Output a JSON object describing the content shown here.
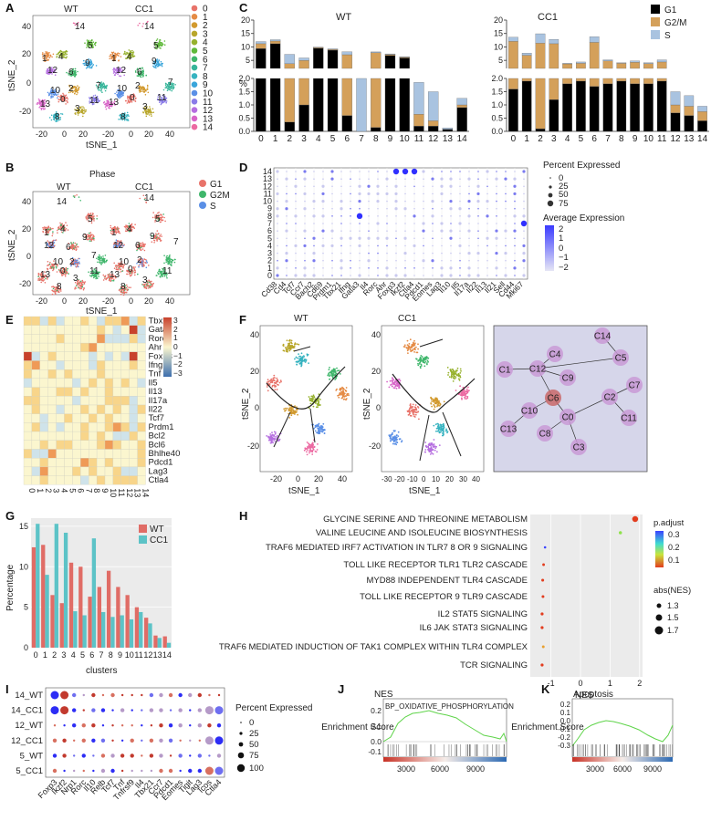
{
  "panels": [
    "A",
    "B",
    "C",
    "D",
    "E",
    "F",
    "G",
    "H",
    "I",
    "J",
    "K"
  ],
  "colors": {
    "g1": "#000000",
    "g2m": "#d4a05a",
    "s": "#a9c3e0",
    "wt": "#e06c66",
    "cc1": "#5cc3c7",
    "cluster_palette": [
      "#e8736a",
      "#e58b45",
      "#d29a2f",
      "#b8a62a",
      "#96b12d",
      "#5fb93a",
      "#3fb66b",
      "#36b59a",
      "#37b3c0",
      "#3aa5da",
      "#5a8fe6",
      "#8a7be8",
      "#b56ee0",
      "#d865c8",
      "#ec6aa2"
    ]
  },
  "panelA": {
    "titles": [
      "WT",
      "CC1"
    ],
    "xlabel": "tSNE_1",
    "ylabel": "tSNE_2",
    "xticks": [
      "-20",
      "0",
      "20",
      "40"
    ],
    "yticks": [
      "40",
      "20",
      "0",
      "-20"
    ],
    "legend": [
      "0",
      "1",
      "2",
      "3",
      "4",
      "5",
      "6",
      "7",
      "8",
      "9",
      "10",
      "11",
      "12",
      "13",
      "14"
    ],
    "cluster_labels": [
      "14",
      "5",
      "1",
      "4",
      "12",
      "9",
      "6",
      "10",
      "2",
      "13",
      "0",
      "7",
      "11",
      "8",
      "3"
    ]
  },
  "panelB": {
    "title": "Phase",
    "titles": [
      "WT",
      "CC1"
    ],
    "xlabel": "tSNE_1",
    "ylabel": "tSNE_2",
    "xticks": [
      "-20",
      "0",
      "20",
      "40"
    ],
    "yticks": [
      "40",
      "20",
      "0",
      "-20"
    ],
    "legend": [
      "G1",
      "G2M",
      "S"
    ],
    "legend_colors": [
      "#e8736a",
      "#3fb66b",
      "#5a8fe6"
    ]
  },
  "chart_data": [
    {
      "type": "bar",
      "panel": "C-WT",
      "title": "WT",
      "ylabel": "%",
      "categories": [
        "0",
        "1",
        "2",
        "3",
        "4",
        "5",
        "6",
        "7",
        "8",
        "9",
        "10",
        "11",
        "12",
        "13",
        "14"
      ],
      "upper_yticks": [
        "20",
        "15",
        "10",
        "5"
      ],
      "lower_yticks": [
        "2.0",
        "1.5",
        "1.0",
        "0.5",
        "0.0"
      ],
      "series": [
        {
          "name": "G1",
          "values": [
            9.4,
            11.2,
            0.35,
            1.0,
            9.5,
            8.8,
            0.6,
            0,
            0.15,
            6.8,
            5.9,
            0.2,
            0.2,
            0.08,
            0.9
          ]
        },
        {
          "name": "G2/M",
          "values": [
            1.8,
            1.0,
            3.4,
            4.0,
            0.3,
            0.3,
            6.5,
            0,
            7.7,
            0.4,
            0.3,
            0.45,
            0.2,
            0,
            0.1
          ]
        },
        {
          "name": "S",
          "values": [
            0.8,
            0.5,
            3.5,
            0.9,
            0.1,
            0.2,
            1.1,
            2.0,
            0.3,
            0.2,
            0.1,
            1.2,
            1.1,
            0.05,
            0.25
          ]
        }
      ]
    },
    {
      "type": "bar",
      "panel": "C-CC1",
      "title": "CC1",
      "ylabel": "%",
      "categories": [
        "0",
        "1",
        "2",
        "3",
        "4",
        "5",
        "6",
        "7",
        "8",
        "9",
        "10",
        "11",
        "12",
        "13",
        "14"
      ],
      "upper_yticks": [
        "20",
        "15",
        "10",
        "5"
      ],
      "lower_yticks": [
        "2.0",
        "1.5",
        "1.0",
        "0.5",
        "0.0"
      ],
      "series": [
        {
          "name": "G1",
          "values": [
            1.6,
            1.9,
            0.1,
            1.2,
            1.8,
            1.9,
            1.7,
            1.8,
            1.9,
            1.8,
            1.8,
            1.9,
            0.7,
            0.6,
            0.4
          ]
        },
        {
          "name": "G2/M",
          "values": [
            10.5,
            5.0,
            11.3,
            10.0,
            1.9,
            2.0,
            10.0,
            3.0,
            2.0,
            2.5,
            2.0,
            2.5,
            0.3,
            0.35,
            0.35
          ]
        },
        {
          "name": "S",
          "values": [
            1.5,
            0.8,
            3.5,
            1.6,
            0.2,
            0.5,
            2.1,
            0.4,
            0.2,
            0.5,
            0.3,
            0.8,
            0.5,
            0.4,
            0.2
          ]
        }
      ]
    },
    {
      "type": "bar",
      "panel": "G",
      "xlabel": "clusters",
      "ylabel": "Percentage",
      "yticks": [
        "0",
        "5",
        "10",
        "15"
      ],
      "ylim": [
        0,
        16
      ],
      "categories": [
        "0",
        "1",
        "2",
        "3",
        "4",
        "5",
        "6",
        "7",
        "8",
        "9",
        "10",
        "11",
        "12",
        "13",
        "14"
      ],
      "series": [
        {
          "name": "WT",
          "values": [
            12.4,
            12.7,
            6.5,
            5.5,
            10.5,
            10.0,
            6.3,
            7.5,
            9.5,
            7.5,
            6.5,
            5.0,
            3.7,
            1.5,
            1.4
          ]
        },
        {
          "name": "CC1",
          "values": [
            15.3,
            9.0,
            15.3,
            14.2,
            4.5,
            4.0,
            13.5,
            4.4,
            3.8,
            4.0,
            3.5,
            4.4,
            3.0,
            1.2,
            0.6
          ]
        }
      ]
    },
    {
      "type": "scatter",
      "panel": "H",
      "xlabel": "NES",
      "xticks": [
        "-1",
        "0",
        "1",
        "2"
      ],
      "xlim": [
        -1.7,
        2.1
      ],
      "categories": [
        "GLYCINE SERINE AND THREONINE METABOLISM",
        "VALINE LEUCINE AND ISOLEUCINE BIOSYNTHESIS",
        "TRAF6 MEDIATED IRF7 ACTIVATION IN TLR7 8 OR 9 SIGNALING",
        "TOLL LIKE RECEPTOR TLR1 TLR2 CASCADE",
        "MYD88 INDEPENDENT TLR4 CASCADE",
        "TOLL LIKE RECEPTOR 9 TLR9 CASCADE",
        "IL2 STAT5 SIGNALING",
        "IL6 JAK STAT3 SIGNALING",
        "TRAF6 MEDIATED INDUCTION OF  TAK1 COMPLEX WITHIN TLR4 COMPLEX",
        "TCR SIGNALING"
      ],
      "nes": [
        1.85,
        1.35,
        -1.2,
        -1.25,
        -1.28,
        -1.27,
        -1.3,
        -1.3,
        -1.26,
        -1.3
      ],
      "p_adjust": [
        0.03,
        0.22,
        0.35,
        0.05,
        0.06,
        0.05,
        0.04,
        0.05,
        0.1,
        0.05
      ],
      "abs_nes": [
        1.85,
        1.35,
        1.2,
        1.25,
        1.28,
        1.27,
        1.3,
        1.3,
        1.26,
        1.3
      ]
    }
  ],
  "panelD": {
    "yticks": [
      "14",
      "13",
      "12",
      "11",
      "10",
      "9",
      "8",
      "7",
      "6",
      "5",
      "4",
      "3",
      "2",
      "1",
      "0"
    ],
    "genes": [
      "Cd38",
      "Cd4",
      "Tcf7",
      "Ccr7",
      "Bach2",
      "Cd69",
      "Prdm1",
      "Tbx21",
      "Ifng",
      "Gata3",
      "Il4",
      "Rorc",
      "Ahr",
      "Foxp3",
      "Ikzf2",
      "Ctla4",
      "Pdcd1",
      "Eomes",
      "Lag3",
      "Il10",
      "Il5",
      "Il17a",
      "Il22",
      "Il13",
      "Il21",
      "Sell",
      "Cd44",
      "Mki67"
    ],
    "legend_title1": "Percent Expressed",
    "legend_sizes": [
      "0",
      "25",
      "50",
      "75"
    ],
    "legend_title2": "Average Expression",
    "legend_colors": [
      "2",
      "1",
      "0",
      "−1",
      "−2"
    ]
  },
  "panelE": {
    "genes": [
      "Tbx21",
      "Gata3",
      "Rorc",
      "Ahr",
      "Foxp3",
      "Ifng",
      "Tnf",
      "Il5",
      "Il13",
      "Il17a",
      "Il22",
      "Tcf7",
      "Prdm1",
      "Bcl2",
      "Bcl6",
      "Bhlhe40",
      "Pdcd1",
      "Lag3",
      "Ctla4"
    ],
    "clusters": [
      "0",
      "1",
      "2",
      "3",
      "4",
      "5",
      "6",
      "7",
      "8",
      "9",
      "10",
      "11",
      "12",
      "13",
      "14"
    ],
    "scale": [
      "3",
      "2",
      "1",
      "0",
      "−1",
      "−2",
      "−3"
    ]
  },
  "panelF": {
    "titles": [
      "WT",
      "CC1"
    ],
    "xlabel": "tSNE_1",
    "ylabel": "tSNE_2",
    "xticks_wt": [
      "-20",
      "0",
      "20",
      "40"
    ],
    "xticks_cc1": [
      "-30",
      "-20",
      "-10",
      "0",
      "10",
      "20",
      "30",
      "40"
    ],
    "yticks": [
      "40",
      "20",
      "0",
      "-20"
    ],
    "network_nodes": [
      "C14",
      "C4",
      "C5",
      "C1",
      "C12",
      "C9",
      "C7",
      "C6",
      "C2",
      "C10",
      "C0",
      "C11",
      "C13",
      "C8",
      "C3"
    ]
  },
  "panelG": {
    "legend": [
      "WT",
      "CC1"
    ]
  },
  "panelH": {
    "legend_title1": "p.adjust",
    "legend_ticks1": [
      "0.3",
      "0.2",
      "0.1"
    ],
    "legend_title2": "abs(NES)",
    "legend_ticks2": [
      "1.3",
      "1.5",
      "1.7"
    ]
  },
  "panelI": {
    "rows": [
      "14_WT",
      "14_CC1",
      "12_WT",
      "12_CC1",
      "5_WT",
      "5_CC1"
    ],
    "genes": [
      "Foxp3",
      "Ikzf2",
      "Nrp1",
      "Rorc",
      "Il10",
      "Relb",
      "Tcf7",
      "Tnf",
      "Tnfrsf9",
      "Il4",
      "Tbx21",
      "Ccr7",
      "Pdcd1",
      "Eomes",
      "Tigit",
      "Lag3",
      "Icos",
      "Ctla4"
    ],
    "legend_title": "Percent Expressed",
    "legend_sizes": [
      "0",
      "25",
      "50",
      "75",
      "100"
    ]
  },
  "panelJ": {
    "title": "NES",
    "gene_set": "BP_OXIDATIVE_PHOSPHORYLATION",
    "ylabel": "Enrichment Score",
    "yticks": [
      "0.2",
      "0.1",
      "0.0",
      "-0.1"
    ],
    "xticks": [
      "3000",
      "6000",
      "9000"
    ]
  },
  "panelK": {
    "title": "Apoptosis",
    "ylabel": "Enrichment Score",
    "yticks": [
      "0.2",
      "0.1",
      "0.0",
      "-0.1",
      "-0.2",
      "-0.3"
    ],
    "xticks": [
      "3000",
      "6000",
      "9000"
    ]
  }
}
